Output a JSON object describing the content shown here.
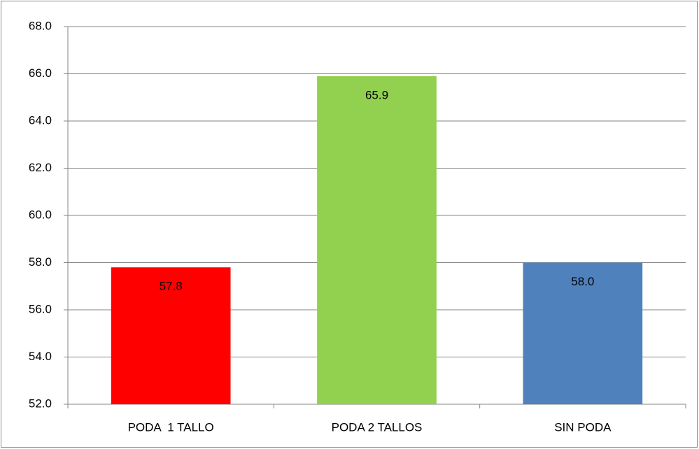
{
  "chart_data": {
    "type": "bar",
    "categories": [
      "PODA  1 TALLO",
      "PODA 2 TALLOS",
      "SIN PODA"
    ],
    "values": [
      57.8,
      65.9,
      58.0
    ],
    "value_labels": [
      "57.8",
      "65.9",
      "58.0"
    ],
    "colors": [
      "#ff0000",
      "#92d050",
      "#4f81bd"
    ],
    "ylim": [
      52,
      68
    ],
    "yticks": [
      {
        "value": 52,
        "label": "52.0"
      },
      {
        "value": 54,
        "label": "54.0"
      },
      {
        "value": 56,
        "label": "56.0"
      },
      {
        "value": 58,
        "label": "58.0"
      },
      {
        "value": 60,
        "label": "60.0"
      },
      {
        "value": 62,
        "label": "62.0"
      },
      {
        "value": 64,
        "label": "64.0"
      },
      {
        "value": 66,
        "label": "66.0"
      },
      {
        "value": 68,
        "label": "68.0"
      }
    ],
    "grid": true
  }
}
